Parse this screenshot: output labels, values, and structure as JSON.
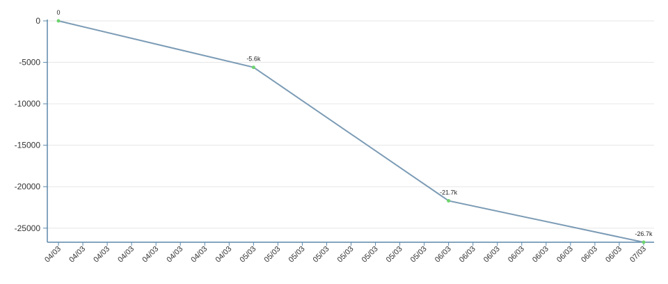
{
  "chart_data": {
    "type": "line",
    "title": "",
    "xlabel": "",
    "ylabel": "",
    "ylim": [
      -26700,
      0
    ],
    "yticks": [
      "0",
      "-5000",
      "-10000",
      "-15000",
      "-20000",
      "-25000"
    ],
    "ytick_values": [
      0,
      -5000,
      -10000,
      -15000,
      -20000,
      -25000
    ],
    "x_tick_labels": [
      "04/03",
      "04/03",
      "04/03",
      "04/03",
      "04/03",
      "04/03",
      "04/03",
      "04/03",
      "05/03",
      "05/03",
      "05/03",
      "05/03",
      "05/03",
      "05/03",
      "05/03",
      "05/03",
      "06/03",
      "06/03",
      "06/03",
      "06/03",
      "06/03",
      "06/03",
      "06/03",
      "06/03",
      "07/03"
    ],
    "grid": true,
    "legend": "none",
    "series": [
      {
        "x": [
          "04/03",
          "05/03",
          "06/03",
          "07/03"
        ],
        "values": [
          0,
          -5600,
          -21700,
          -26700
        ],
        "labels": [
          "0",
          "-5.6k",
          "-21.7k",
          "-26.7k"
        ]
      }
    ],
    "colors": {
      "line": "#7b9bb5",
      "marker": "#6dd36d",
      "axis": "#5b87aa",
      "grid": "#e6e6e6"
    }
  }
}
